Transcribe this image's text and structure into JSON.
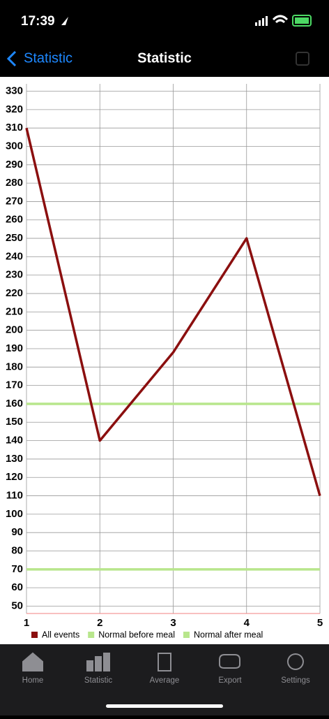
{
  "status_bar": {
    "time": "17:39"
  },
  "nav": {
    "back": "Statistic",
    "title": "Statistic"
  },
  "chart_data": {
    "type": "line",
    "x": [
      1,
      2,
      3,
      4,
      5
    ],
    "series": [
      {
        "name": "All events",
        "color": "#8b0f0f",
        "values": [
          310,
          140,
          188,
          250,
          110
        ]
      },
      {
        "name": "Normal before meal",
        "color": "#b8e68c",
        "values": [
          160,
          160,
          160,
          160,
          160
        ]
      },
      {
        "name": "Normal after meal",
        "color": "#b8e68c",
        "values": [
          70,
          70,
          70,
          70,
          70
        ]
      }
    ],
    "xlim": [
      1,
      5
    ],
    "xticks": [
      1,
      2,
      3,
      4,
      5
    ],
    "ylim": [
      46,
      334
    ],
    "yticks": [
      50,
      60,
      70,
      80,
      90,
      100,
      110,
      120,
      130,
      140,
      150,
      160,
      170,
      180,
      190,
      200,
      210,
      220,
      230,
      240,
      250,
      260,
      270,
      280,
      290,
      300,
      310,
      320,
      330
    ],
    "grid": true
  },
  "tabs": [
    "Home",
    "Statistic",
    "Average",
    "Export",
    "Settings"
  ]
}
